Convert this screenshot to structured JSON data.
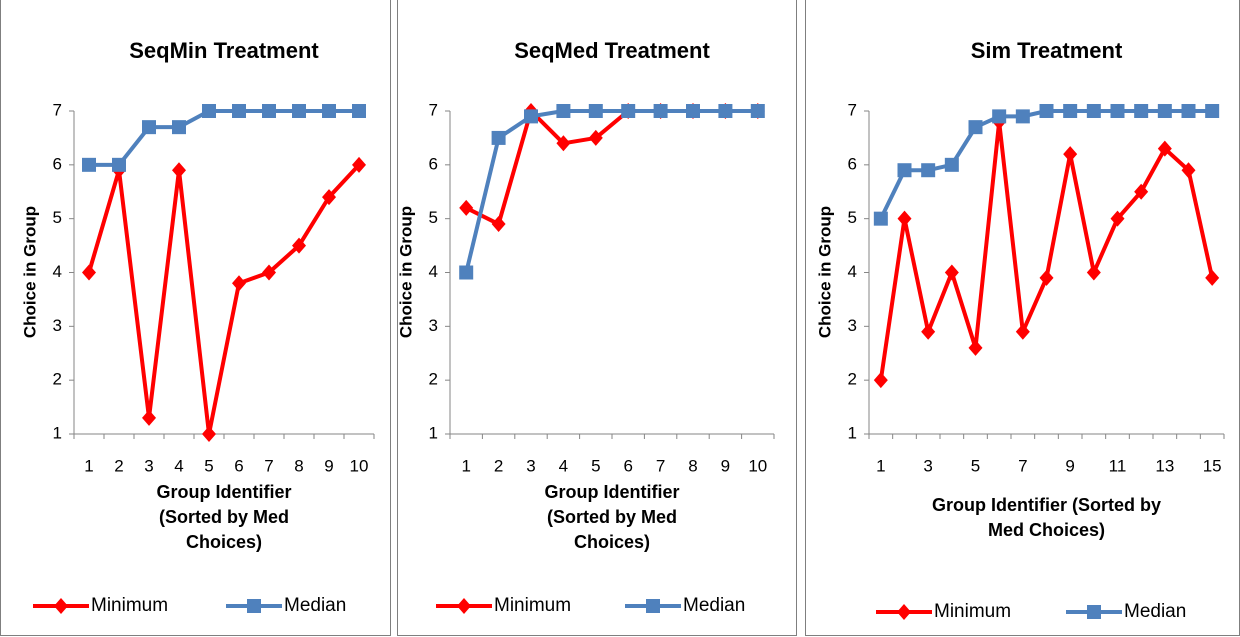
{
  "chart_data": [
    {
      "type": "line",
      "title": "SeqMin Treatment",
      "xlabel": "Group Identifier (Sorted by Med Choices)",
      "ylabel": "Choice in Group",
      "categories": [
        "1",
        "2",
        "3",
        "4",
        "5",
        "6",
        "7",
        "8",
        "9",
        "10"
      ],
      "ylim": [
        1,
        7
      ],
      "yticks": [
        1,
        2,
        3,
        4,
        5,
        6,
        7
      ],
      "grid": false,
      "legend": "bottom",
      "series": [
        {
          "name": "Minimum",
          "color": "#ff0000",
          "marker": "diamond",
          "values": [
            4,
            5.9,
            1.3,
            5.9,
            1,
            3.8,
            4,
            4.5,
            5.4,
            6
          ]
        },
        {
          "name": "Median",
          "color": "#4f81bd",
          "marker": "square",
          "values": [
            6,
            6,
            6.7,
            6.7,
            7,
            7,
            7,
            7,
            7,
            7
          ]
        }
      ]
    },
    {
      "type": "line",
      "title": "SeqMed Treatment",
      "xlabel": "Group Identifier (Sorted by Med Choices)",
      "ylabel": "Choice in Group",
      "categories": [
        "1",
        "2",
        "3",
        "4",
        "5",
        "6",
        "7",
        "8",
        "9",
        "10"
      ],
      "ylim": [
        1,
        7
      ],
      "yticks": [
        1,
        2,
        3,
        4,
        5,
        6,
        7
      ],
      "grid": false,
      "legend": "bottom",
      "series": [
        {
          "name": "Minimum",
          "color": "#ff0000",
          "marker": "diamond",
          "values": [
            5.2,
            4.9,
            7,
            6.4,
            6.5,
            7,
            7,
            7,
            7,
            7
          ]
        },
        {
          "name": "Median",
          "color": "#4f81bd",
          "marker": "square",
          "values": [
            4,
            6.5,
            6.9,
            7,
            7,
            7,
            7,
            7,
            7,
            7
          ]
        }
      ]
    },
    {
      "type": "line",
      "title": "Sim Treatment",
      "xlabel": "Group Identifier (Sorted by Med Choices)",
      "ylabel": "Choice in Group",
      "categories": [
        "1",
        null,
        "3",
        null,
        "5",
        null,
        "7",
        null,
        "9",
        null,
        "11",
        null,
        "13",
        null,
        "15"
      ],
      "ylim": [
        1,
        7
      ],
      "yticks": [
        1,
        2,
        3,
        4,
        5,
        6,
        7
      ],
      "grid": false,
      "legend": "bottom",
      "series": [
        {
          "name": "Minimum",
          "color": "#ff0000",
          "marker": "diamond",
          "values": [
            2,
            5,
            2.9,
            4,
            2.6,
            6.8,
            2.9,
            3.9,
            6.2,
            4,
            5,
            5.5,
            6.3,
            5.9,
            3.9
          ]
        },
        {
          "name": "Median",
          "color": "#4f81bd",
          "marker": "square",
          "values": [
            5,
            5.9,
            5.9,
            6,
            6.7,
            6.9,
            6.9,
            7,
            7,
            7,
            7,
            7,
            7,
            7,
            7
          ]
        }
      ]
    }
  ]
}
